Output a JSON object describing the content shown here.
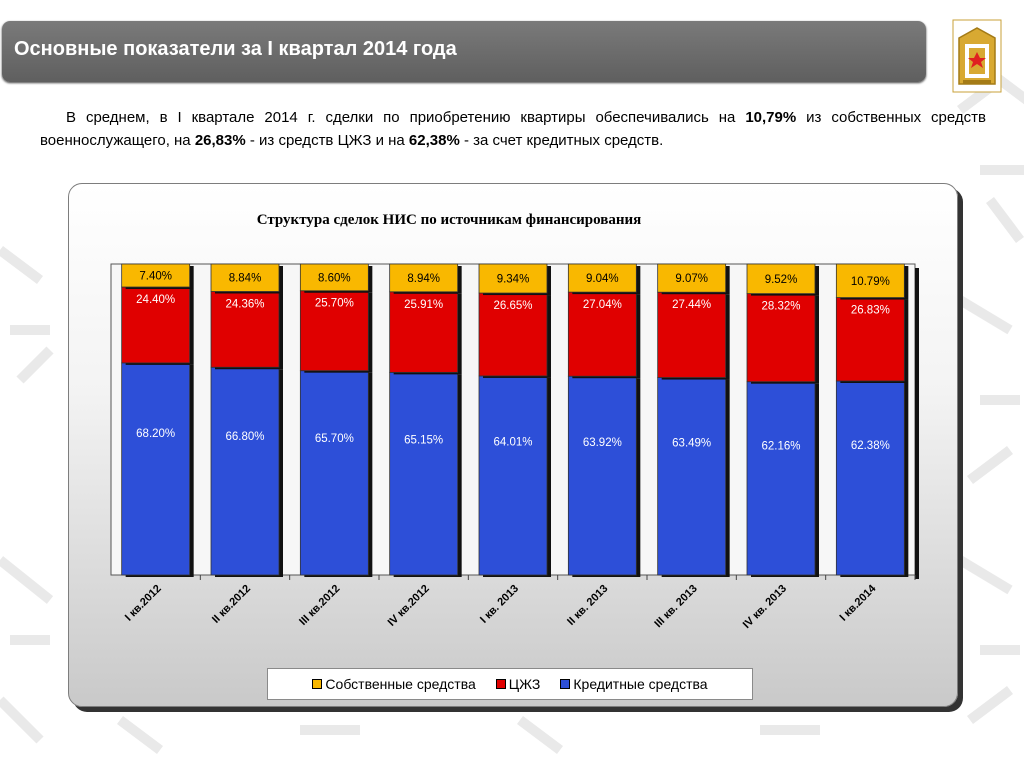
{
  "header": {
    "title": "Основные показатели за I квартал 2014 года"
  },
  "intro": {
    "t1": "В среднем, в I квартале 2014 г. сделки по приобретению квартиры обеспечивались на ",
    "v1": "10,79%",
    "t2": " из собственных средств военнослужащего, на ",
    "v2": "26,83%",
    "t3": " - из средств ЦЖЗ и на ",
    "v3": "62,38%",
    "t4": " - за счет кредитных средств."
  },
  "colors": {
    "own": "#F9B800",
    "czhz": "#E00000",
    "credit": "#2D4FD8",
    "title_bar": "#6b6b6b"
  },
  "chart_data": {
    "type": "bar",
    "stacked": true,
    "title": "Структура сделок НИС по источникам финансирования",
    "categories": [
      "I кв.2012",
      "II кв.2012",
      "III кв.2012",
      "IV кв.2012",
      "I кв. 2013",
      "II кв. 2013",
      "III кв. 2013",
      "IV кв. 2013",
      "I кв.2014"
    ],
    "series": [
      {
        "name": "Кредитные средства",
        "key": "credit",
        "values": [
          68.2,
          66.8,
          65.7,
          65.15,
          64.01,
          63.92,
          63.49,
          62.16,
          62.38
        ],
        "labels": [
          "68.20%",
          "66.80%",
          "65.70%",
          "65.15%",
          "64.01%",
          "63.92%",
          "63.49%",
          "62.16%",
          "62.38%"
        ]
      },
      {
        "name": "ЦЖЗ",
        "key": "czhz",
        "values": [
          24.4,
          24.36,
          25.7,
          25.91,
          26.65,
          27.04,
          27.44,
          28.32,
          26.83
        ],
        "labels": [
          "24.40%",
          "24.36%",
          "25.70%",
          "25.91%",
          "26.65%",
          "27.04%",
          "27.44%",
          "28.32%",
          "26.83%"
        ]
      },
      {
        "name": "Собственные средства",
        "key": "own",
        "values": [
          7.4,
          8.84,
          8.6,
          8.94,
          9.34,
          9.04,
          9.07,
          9.52,
          10.79
        ],
        "labels": [
          "7.40%",
          "8.84%",
          "8.60%",
          "8.94%",
          "9.34%",
          "9.04%",
          "9.07%",
          "9.52%",
          "10.79%"
        ]
      }
    ],
    "legend_order": [
      "own",
      "czhz",
      "credit"
    ],
    "ylim": [
      0,
      100
    ],
    "grid": false,
    "legend_position": "bottom"
  }
}
